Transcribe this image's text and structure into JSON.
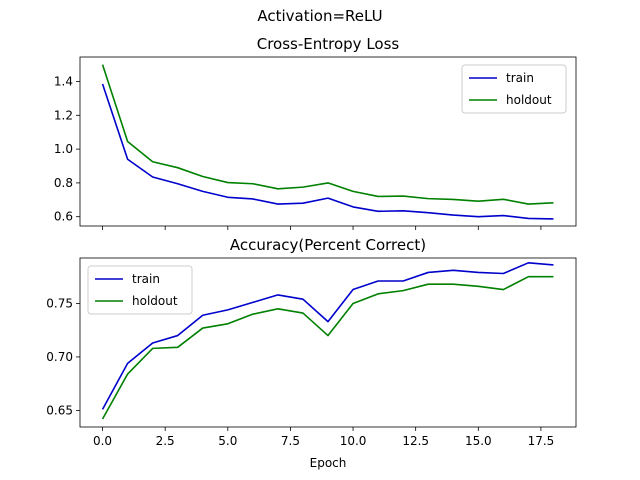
{
  "figure": {
    "suptitle": "Activation=ReLU"
  },
  "chart_data": [
    {
      "type": "line",
      "title": "Cross-Entropy Loss",
      "xlabel": "",
      "ylabel": "",
      "x": [
        0,
        1,
        2,
        3,
        4,
        5,
        6,
        7,
        8,
        9,
        10,
        11,
        12,
        13,
        14,
        15,
        16,
        17,
        18
      ],
      "xlim": [
        -0.9,
        18.9
      ],
      "ylim": [
        0.545,
        1.545
      ],
      "yticks": [
        0.6,
        0.8,
        1.0,
        1.2,
        1.4
      ],
      "ytick_labels": [
        "0.6",
        "0.8",
        "1.0",
        "1.2",
        "1.4"
      ],
      "xticks": [
        0,
        2.5,
        5,
        7.5,
        10,
        12.5,
        15,
        17.5
      ],
      "show_xtick_labels": false,
      "grid": false,
      "legend_position": "upper right",
      "series": [
        {
          "name": "train",
          "color": "#0000cc",
          "values": [
            1.385,
            0.94,
            0.835,
            0.795,
            0.75,
            0.715,
            0.705,
            0.675,
            0.68,
            0.71,
            0.658,
            0.632,
            0.635,
            0.624,
            0.61,
            0.6,
            0.607,
            0.59,
            0.587
          ]
        },
        {
          "name": "holdout",
          "color": "#008000",
          "values": [
            1.5,
            1.045,
            0.925,
            0.89,
            0.838,
            0.802,
            0.795,
            0.765,
            0.775,
            0.8,
            0.75,
            0.72,
            0.722,
            0.707,
            0.702,
            0.692,
            0.703,
            0.675,
            0.682
          ]
        }
      ]
    },
    {
      "type": "line",
      "title": "Accuracy(Percent Correct)",
      "xlabel": "Epoch",
      "ylabel": "",
      "x": [
        0,
        1,
        2,
        3,
        4,
        5,
        6,
        7,
        8,
        9,
        10,
        11,
        12,
        13,
        14,
        15,
        16,
        17,
        18
      ],
      "xlim": [
        -0.9,
        18.9
      ],
      "ylim": [
        0.6345,
        0.7925
      ],
      "yticks": [
        0.65,
        0.7,
        0.75
      ],
      "ytick_labels": [
        "0.65",
        "0.70",
        "0.75"
      ],
      "xticks": [
        0,
        2.5,
        5,
        7.5,
        10,
        12.5,
        15,
        17.5
      ],
      "xtick_labels": [
        "0.0",
        "2.5",
        "5.0",
        "7.5",
        "10.0",
        "12.5",
        "15.0",
        "17.5"
      ],
      "show_xtick_labels": true,
      "grid": false,
      "legend_position": "upper left",
      "series": [
        {
          "name": "train",
          "color": "#0000cc",
          "values": [
            0.651,
            0.694,
            0.713,
            0.72,
            0.739,
            0.744,
            0.751,
            0.758,
            0.754,
            0.733,
            0.763,
            0.771,
            0.771,
            0.779,
            0.781,
            0.779,
            0.778,
            0.788,
            0.786
          ]
        },
        {
          "name": "holdout",
          "color": "#008000",
          "values": [
            0.642,
            0.684,
            0.708,
            0.709,
            0.727,
            0.731,
            0.74,
            0.745,
            0.741,
            0.72,
            0.75,
            0.759,
            0.762,
            0.768,
            0.768,
            0.766,
            0.763,
            0.775,
            0.775
          ]
        }
      ]
    }
  ]
}
